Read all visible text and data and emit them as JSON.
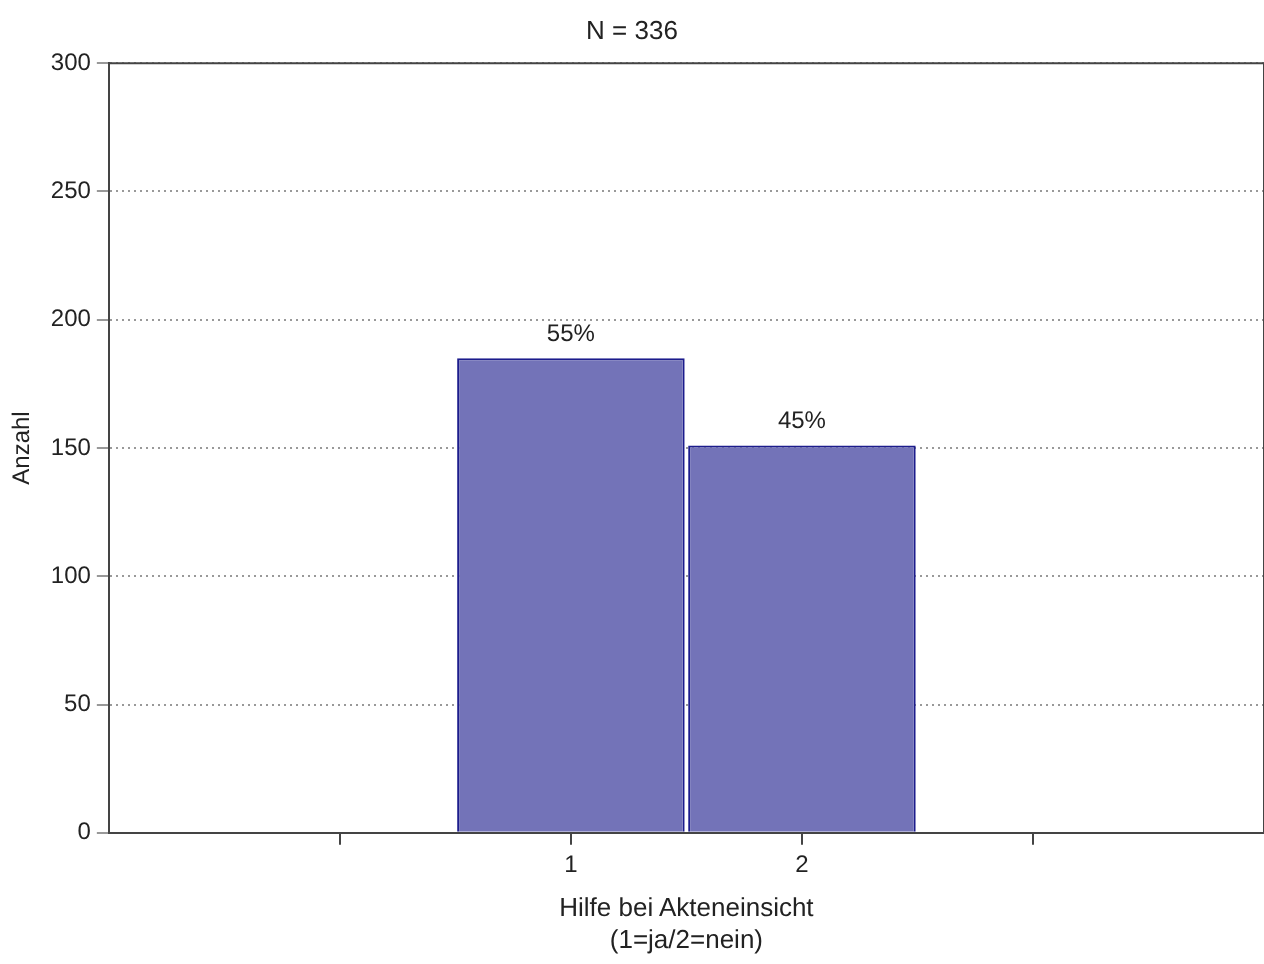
{
  "chart_data": {
    "type": "bar",
    "title": "N = 336",
    "xlabel": "Hilfe bei Akteneinsicht\n(1=ja/2=nein)",
    "ylabel": "Anzahl",
    "x": [
      1,
      2
    ],
    "xlim": [
      -1,
      4
    ],
    "xticks": [
      {
        "value": 0,
        "label": null
      },
      1,
      2,
      {
        "value": 3,
        "label": null
      }
    ],
    "values": [
      185,
      151
    ],
    "color": "#7373b8",
    "annotations": [
      {
        "text": "55%",
        "x": 1,
        "y": 185
      },
      {
        "text": "45%",
        "x": 2,
        "y": 151
      }
    ],
    "ylim": [
      0,
      300
    ],
    "yticks": [
      0,
      50,
      100,
      150,
      200,
      250,
      300
    ],
    "grid": "y",
    "legend": false
  }
}
